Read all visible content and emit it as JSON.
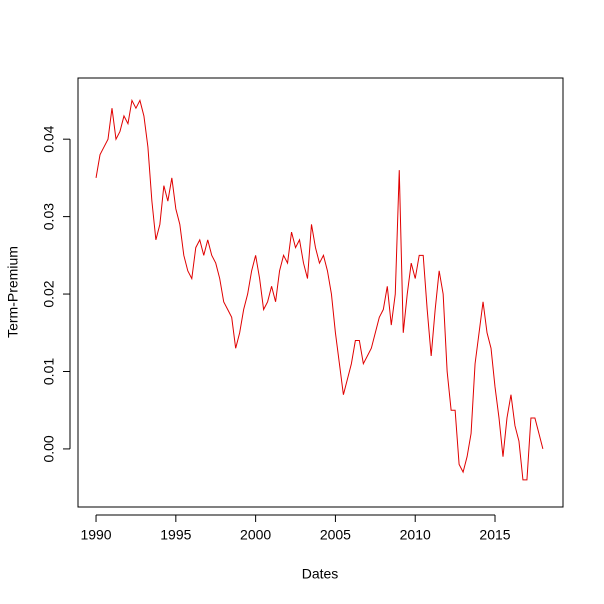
{
  "chart_data": {
    "type": "line",
    "xlabel": "Dates",
    "ylabel": "Term-Premium",
    "xlim": [
      1988.87,
      2019.26
    ],
    "ylim": [
      -0.0075,
      0.0479
    ],
    "xticks": [
      1990,
      1995,
      2000,
      2005,
      2010,
      2015
    ],
    "yticks": [
      {
        "value": 0,
        "label": "0.00"
      },
      0.01,
      0.02,
      0.03,
      0.04
    ],
    "x": [
      1990,
      1990.25,
      1990.5,
      1990.75,
      1991,
      1991.25,
      1991.5,
      1991.75,
      1992,
      1992.25,
      1992.5,
      1992.75,
      1993,
      1993.25,
      1993.5,
      1993.75,
      1994,
      1994.25,
      1994.5,
      1994.75,
      1995,
      1995.25,
      1995.5,
      1995.75,
      1996,
      1996.25,
      1996.5,
      1996.75,
      1997,
      1997.25,
      1997.5,
      1997.75,
      1998,
      1998.25,
      1998.5,
      1998.75,
      1999,
      1999.25,
      1999.5,
      1999.75,
      2000,
      2000.25,
      2000.5,
      2000.75,
      2001,
      2001.25,
      2001.5,
      2001.75,
      2002,
      2002.25,
      2002.5,
      2002.75,
      2003,
      2003.25,
      2003.5,
      2003.75,
      2004,
      2004.25,
      2004.5,
      2004.75,
      2005,
      2005.25,
      2005.5,
      2005.75,
      2006,
      2006.25,
      2006.5,
      2006.75,
      2007,
      2007.25,
      2007.5,
      2007.75,
      2008,
      2008.25,
      2008.5,
      2008.75,
      2009,
      2009.25,
      2009.5,
      2009.75,
      2010,
      2010.25,
      2010.5,
      2010.75,
      2011,
      2011.25,
      2011.5,
      2011.75,
      2012,
      2012.25,
      2012.5,
      2012.75,
      2013,
      2013.25,
      2013.5,
      2013.75,
      2014,
      2014.25,
      2014.5,
      2014.75,
      2015,
      2015.25,
      2015.5,
      2015.75,
      2016,
      2016.25,
      2016.5,
      2016.75,
      2017,
      2017.25,
      2017.5,
      2017.75,
      2018
    ],
    "series": [
      {
        "color": "#e00000",
        "values": [
          0.035,
          0.038,
          0.039,
          0.04,
          0.044,
          0.04,
          0.041,
          0.043,
          0.042,
          0.045,
          0.044,
          0.045,
          0.043,
          0.039,
          0.032,
          0.027,
          0.029,
          0.034,
          0.032,
          0.035,
          0.031,
          0.029,
          0.025,
          0.023,
          0.022,
          0.026,
          0.027,
          0.025,
          0.027,
          0.025,
          0.024,
          0.022,
          0.019,
          0.018,
          0.017,
          0.013,
          0.015,
          0.018,
          0.02,
          0.023,
          0.025,
          0.022,
          0.018,
          0.019,
          0.021,
          0.019,
          0.023,
          0.025,
          0.024,
          0.028,
          0.026,
          0.027,
          0.024,
          0.022,
          0.029,
          0.026,
          0.024,
          0.025,
          0.023,
          0.02,
          0.015,
          0.011,
          0.007,
          0.009,
          0.011,
          0.014,
          0.014,
          0.011,
          0.012,
          0.013,
          0.015,
          0.017,
          0.018,
          0.021,
          0.016,
          0.02,
          0.036,
          0.015,
          0.02,
          0.024,
          0.022,
          0.025,
          0.025,
          0.018,
          0.012,
          0.018,
          0.023,
          0.02,
          0.01,
          0.005,
          0.005,
          -0.002,
          -0.003,
          -0.001,
          0.002,
          0.011,
          0.015,
          0.019,
          0.015,
          0.013,
          0.008,
          0.004,
          -0.001,
          0.004,
          0.007,
          0.003,
          0.001,
          -0.004,
          -0.004,
          0.004,
          0.004,
          0.002,
          0
        ]
      }
    ]
  }
}
